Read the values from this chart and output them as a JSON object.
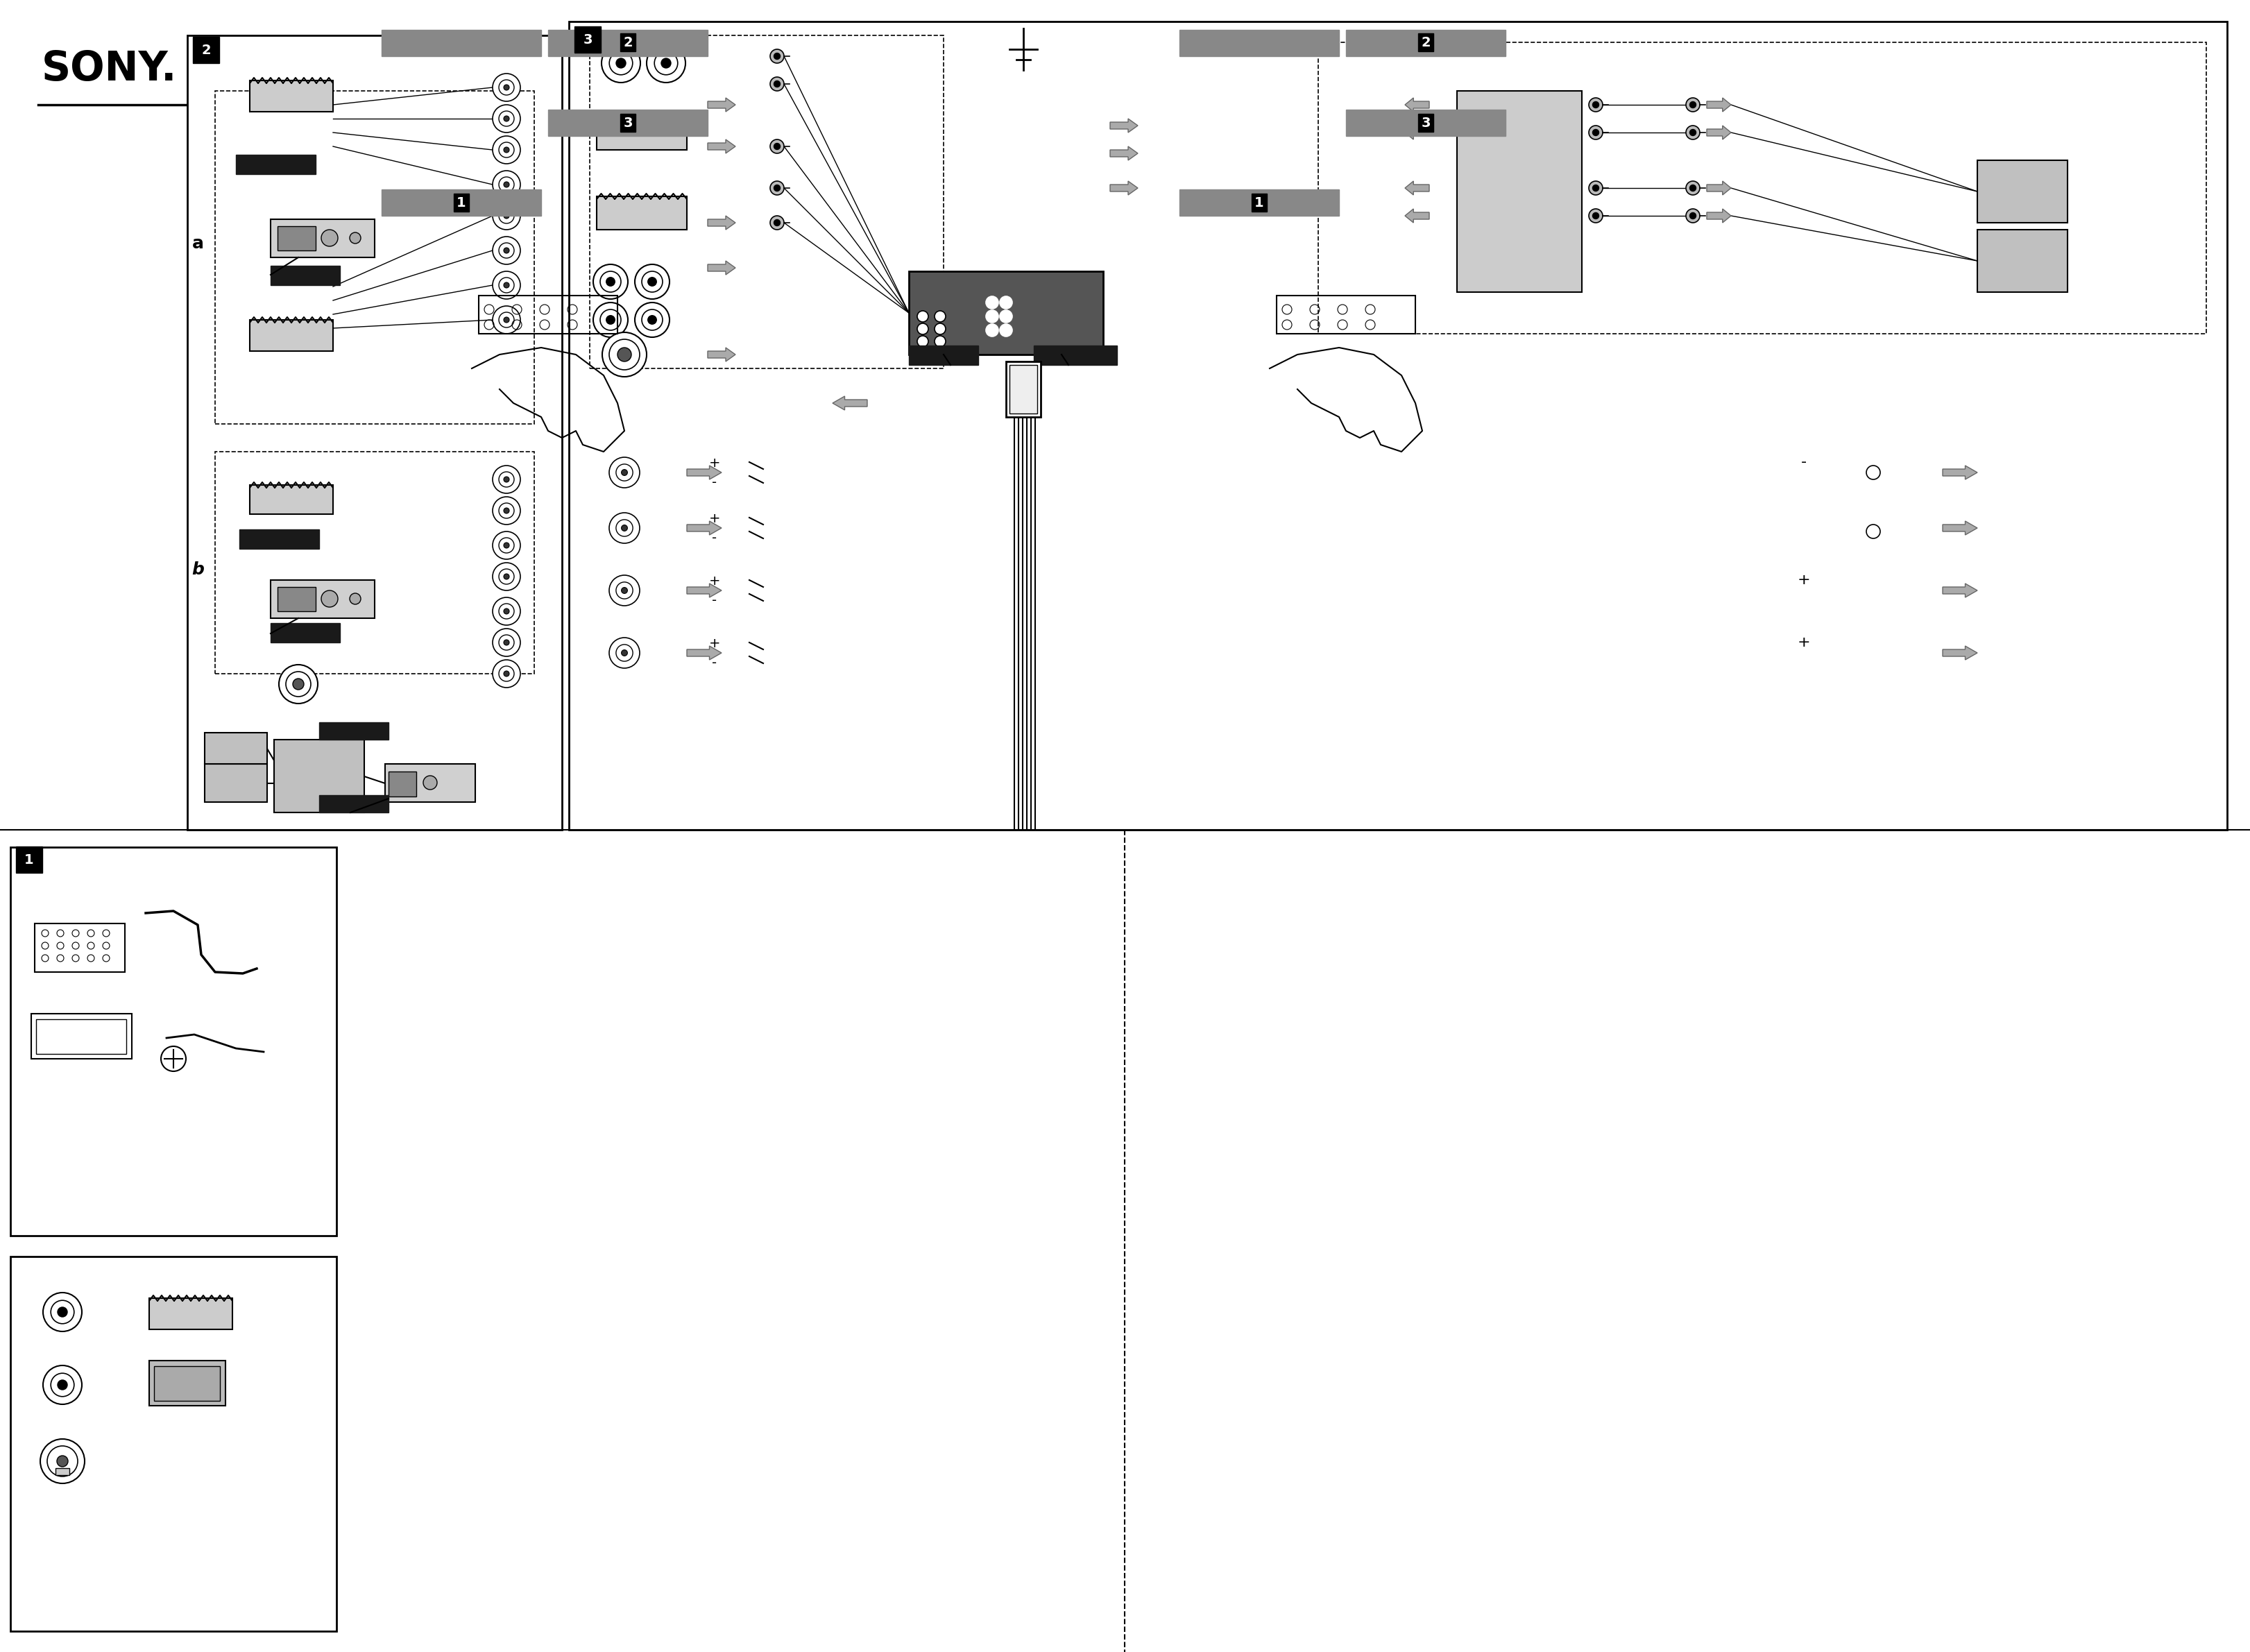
{
  "page_bg": "#ffffff",
  "border_color": "#000000",
  "title_text": "SONY.",
  "diagram2_label": "2",
  "diagram3_label": "3",
  "diagram1_label": "1",
  "gray_label_color": "#666666",
  "dark_label_color": "#222222",
  "box_fill": "#e0e0e0",
  "dashed_box_color": "#999999",
  "black_fill": "#1a1a1a",
  "speaker_color": "#555555",
  "wire_color": "#333333",
  "light_gray": "#c8c8c8",
  "medium_gray": "#888888"
}
